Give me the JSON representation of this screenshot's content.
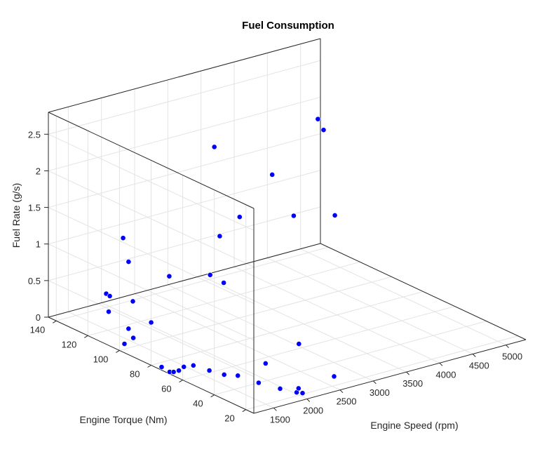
{
  "chart_data": {
    "type": "scatter3d",
    "title": "Fuel Consumption",
    "xlabel": "Engine Speed (rpm)",
    "ylabel": "Engine Torque (Nm)",
    "zlabel": "Fuel Rate (g/s)",
    "x_ticks": [
      "1500",
      "2000",
      "2500",
      "3000",
      "3500",
      "4000",
      "4500",
      "5000"
    ],
    "y_ticks": [
      "20",
      "40",
      "60",
      "80",
      "100",
      "120",
      "140"
    ],
    "z_ticks": [
      "0",
      "0.5",
      "1",
      "1.5",
      "2",
      "2.5"
    ],
    "xlim": [
      1200,
      5300
    ],
    "ylim": [
      15,
      145
    ],
    "zlim": [
      0,
      2.8
    ],
    "grid": true,
    "marker_color": "#0000ff",
    "points": [
      {
        "x": 1262,
        "y": 111,
        "z": 0.65
      },
      {
        "x": 1312,
        "y": 99,
        "z": 0.28
      },
      {
        "x": 1289,
        "y": 95,
        "z": 0.2
      },
      {
        "x": 1203,
        "y": 97,
        "z": 0.12
      },
      {
        "x": 1275,
        "y": 110,
        "z": 0.41
      },
      {
        "x": 1411,
        "y": 115,
        "z": 0.54
      },
      {
        "x": 1568,
        "y": 107,
        "z": 0.51
      },
      {
        "x": 1701,
        "y": 101,
        "z": 0.25
      },
      {
        "x": 1826,
        "y": 124,
        "z": 1.14
      },
      {
        "x": 1766,
        "y": 118,
        "z": 0.89
      },
      {
        "x": 1950,
        "y": 100,
        "z": 0.83
      },
      {
        "x": 2114,
        "y": 81,
        "z": 1.0
      },
      {
        "x": 2128,
        "y": 73,
        "z": 0.97
      },
      {
        "x": 2235,
        "y": 80,
        "z": 1.51
      },
      {
        "x": 2487,
        "y": 78,
        "z": 1.73
      },
      {
        "x": 2630,
        "y": 100,
        "z": 2.43
      },
      {
        "x": 2811,
        "y": 71,
        "z": 2.3
      },
      {
        "x": 2849,
        "y": 59,
        "z": 1.85
      },
      {
        "x": 3160,
        "y": 46,
        "z": 1.91
      },
      {
        "x": 3466,
        "y": 66,
        "z": 2.8
      },
      {
        "x": 3500,
        "y": 71,
        "z": 2.89
      },
      {
        "x": 1263,
        "y": 76,
        "z": 0.0
      },
      {
        "x": 1242,
        "y": 70,
        "z": 0.0
      },
      {
        "x": 1277,
        "y": 69,
        "z": 0.0
      },
      {
        "x": 1356,
        "y": 69,
        "z": 0.0
      },
      {
        "x": 1479,
        "y": 71,
        "z": 0.0
      },
      {
        "x": 1599,
        "y": 70,
        "z": 0.0
      },
      {
        "x": 1649,
        "y": 62,
        "z": 0.0
      },
      {
        "x": 1706,
        "y": 55,
        "z": 0.0
      },
      {
        "x": 1816,
        "y": 51,
        "z": 0.0
      },
      {
        "x": 1868,
        "y": 40,
        "z": 0.0
      },
      {
        "x": 1953,
        "y": 30,
        "z": 0.0
      },
      {
        "x": 2036,
        "y": 23,
        "z": 0.0
      },
      {
        "x": 2077,
        "y": 21,
        "z": 0.0
      },
      {
        "x": 2136,
        "y": 26,
        "z": 0.0
      },
      {
        "x": 2330,
        "y": 55,
        "z": 0.0
      },
      {
        "x": 2720,
        "y": 28,
        "z": 0.0
      },
      {
        "x": 3046,
        "y": 64,
        "z": 0.0
      }
    ]
  }
}
